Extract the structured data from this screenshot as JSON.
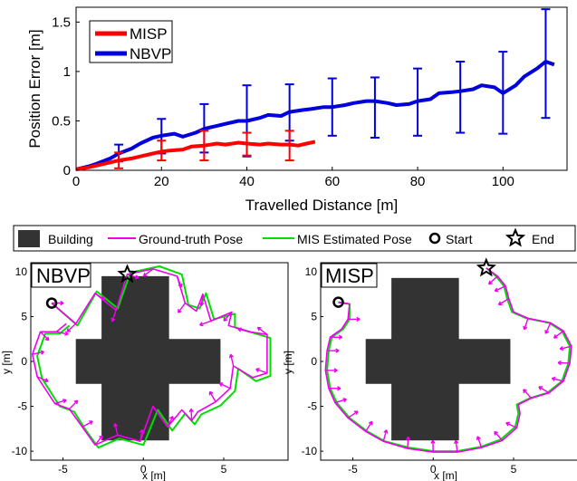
{
  "chart_data": [
    {
      "type": "line",
      "xlabel": "Travelled Distance [m]",
      "ylabel": "Position Error [m]",
      "xlim": [
        0,
        115
      ],
      "ylim": [
        0,
        1.65
      ],
      "xticks": [
        0,
        20,
        40,
        60,
        80,
        100
      ],
      "yticks": [
        0,
        0.5,
        1,
        1.5
      ],
      "ytick_labels": [
        "0",
        "0.5",
        "1",
        "1.5"
      ],
      "legend_position": "top-left",
      "series": [
        {
          "name": "MISP",
          "color": "#ff0000",
          "x": [
            0,
            3,
            5,
            8,
            10,
            13,
            15,
            18,
            20,
            22,
            25,
            27,
            30,
            33,
            35,
            38,
            40,
            43,
            45,
            48,
            50,
            52,
            54,
            56
          ],
          "y": [
            0.01,
            0.03,
            0.05,
            0.08,
            0.1,
            0.12,
            0.14,
            0.17,
            0.19,
            0.2,
            0.21,
            0.24,
            0.25,
            0.27,
            0.26,
            0.28,
            0.27,
            0.26,
            0.27,
            0.26,
            0.26,
            0.25,
            0.27,
            0.29
          ],
          "errorbars": [
            {
              "x": 10,
              "y": 0.1,
              "low": 0.02,
              "high": 0.18
            },
            {
              "x": 20,
              "y": 0.19,
              "low": 0.1,
              "high": 0.3
            },
            {
              "x": 30,
              "y": 0.25,
              "low": 0.1,
              "high": 0.4
            },
            {
              "x": 40,
              "y": 0.27,
              "low": 0.15,
              "high": 0.38
            },
            {
              "x": 50,
              "y": 0.26,
              "low": 0.1,
              "high": 0.4
            }
          ]
        },
        {
          "name": "NBVP",
          "color": "#0000dd",
          "x": [
            0,
            3,
            5,
            8,
            10,
            13,
            15,
            18,
            20,
            23,
            25,
            28,
            30,
            33,
            35,
            38,
            40,
            43,
            45,
            48,
            50,
            53,
            55,
            58,
            60,
            63,
            65,
            68,
            70,
            73,
            75,
            78,
            80,
            83,
            85,
            88,
            90,
            93,
            95,
            98,
            100,
            103,
            105,
            108,
            110,
            112
          ],
          "y": [
            0.01,
            0.04,
            0.07,
            0.12,
            0.17,
            0.22,
            0.27,
            0.33,
            0.35,
            0.37,
            0.34,
            0.38,
            0.42,
            0.45,
            0.47,
            0.5,
            0.5,
            0.53,
            0.56,
            0.55,
            0.59,
            0.61,
            0.62,
            0.64,
            0.64,
            0.66,
            0.68,
            0.7,
            0.7,
            0.68,
            0.66,
            0.67,
            0.7,
            0.72,
            0.78,
            0.79,
            0.8,
            0.82,
            0.86,
            0.84,
            0.78,
            0.86,
            0.95,
            1.03,
            1.1,
            1.07
          ],
          "errorbars": [
            {
              "x": 10,
              "y": 0.17,
              "low": 0.09,
              "high": 0.26
            },
            {
              "x": 20,
              "y": 0.35,
              "low": 0.17,
              "high": 0.52
            },
            {
              "x": 30,
              "y": 0.42,
              "low": 0.18,
              "high": 0.67
            },
            {
              "x": 40,
              "y": 0.5,
              "low": 0.14,
              "high": 0.86
            },
            {
              "x": 50,
              "y": 0.59,
              "low": 0.3,
              "high": 0.87
            },
            {
              "x": 60,
              "y": 0.64,
              "low": 0.35,
              "high": 0.93
            },
            {
              "x": 70,
              "y": 0.7,
              "low": 0.33,
              "high": 0.94
            },
            {
              "x": 80,
              "y": 0.7,
              "low": 0.35,
              "high": 1.03
            },
            {
              "x": 90,
              "y": 0.8,
              "low": 0.38,
              "high": 1.1
            },
            {
              "x": 100,
              "y": 0.78,
              "low": 0.37,
              "high": 1.2
            },
            {
              "x": 110,
              "y": 1.1,
              "low": 0.53,
              "high": 1.63
            }
          ]
        }
      ]
    },
    {
      "type": "scatter",
      "title": "NBVP",
      "xlabel": "x [m]",
      "ylabel": "y [m]",
      "xlim": [
        -7,
        9
      ],
      "ylim": [
        -11,
        11
      ],
      "xticks": [
        -5,
        0,
        5
      ],
      "yticks": [
        10,
        5,
        0,
        -5,
        -10
      ],
      "start": [
        -5.7,
        6.5
      ],
      "end": [
        -1,
        9.7
      ],
      "building": [
        {
          "x0": -2.6,
          "x1": 1.6,
          "y0": -8.8,
          "y1": 9.5
        },
        {
          "x0": -4.2,
          "x1": 4.8,
          "y0": -2.5,
          "y1": 2.5
        }
      ],
      "ground_truth_path": [
        [
          -5.7,
          6.5
        ],
        [
          -4.2,
          4.2
        ],
        [
          -3,
          7.6
        ],
        [
          -1.7,
          5.7
        ],
        [
          -1,
          9.7
        ],
        [
          0.6,
          10.3
        ],
        [
          2.1,
          9.5
        ],
        [
          2.6,
          6.5
        ],
        [
          3.3,
          5.6
        ],
        [
          3.7,
          7.5
        ],
        [
          4.2,
          4.5
        ],
        [
          5.5,
          5.5
        ],
        [
          5.3,
          4
        ],
        [
          6.6,
          3.3
        ],
        [
          7.7,
          3
        ],
        [
          7.7,
          -1.3
        ],
        [
          6.8,
          -1.8
        ],
        [
          5.6,
          -0.5
        ],
        [
          5.4,
          -3
        ],
        [
          4.5,
          -4.5
        ],
        [
          3.4,
          -5.6
        ],
        [
          3,
          -6.6
        ],
        [
          2.4,
          -5.4
        ],
        [
          1.5,
          -7.3
        ],
        [
          0.6,
          -5
        ],
        [
          -0.2,
          -8.9
        ],
        [
          -1.6,
          -8.2
        ],
        [
          -3,
          -9.3
        ],
        [
          -3.8,
          -7.3
        ],
        [
          -4.6,
          -5.3
        ],
        [
          -5.5,
          -4.7
        ],
        [
          -6.6,
          -1.7
        ],
        [
          -6.9,
          0.8
        ],
        [
          -6.4,
          3.3
        ],
        [
          -5.4,
          3.3
        ],
        [
          -4.8,
          4.2
        ]
      ],
      "estimated_path": [
        [
          -5.7,
          6.5
        ],
        [
          -4.1,
          4
        ],
        [
          -2.9,
          7.8
        ],
        [
          -1.6,
          5.9
        ],
        [
          -0.8,
          9.9
        ],
        [
          1,
          10.6
        ],
        [
          2.4,
          9.7
        ],
        [
          2.8,
          6.3
        ],
        [
          3.5,
          5.9
        ],
        [
          3.9,
          7.6
        ],
        [
          4.4,
          4.7
        ],
        [
          5.7,
          5.3
        ],
        [
          5.7,
          3.8
        ],
        [
          7,
          3.1
        ],
        [
          7.9,
          2.6
        ],
        [
          7.9,
          -1.6
        ],
        [
          7,
          -2.2
        ],
        [
          5.9,
          -0.8
        ],
        [
          5.7,
          -3.3
        ],
        [
          4.8,
          -4.9
        ],
        [
          3.6,
          -5.9
        ],
        [
          3.2,
          -7
        ],
        [
          2.6,
          -5.8
        ],
        [
          1.8,
          -7.7
        ],
        [
          0.9,
          -5.4
        ],
        [
          0,
          -9.3
        ],
        [
          -1.5,
          -8.6
        ],
        [
          -2.8,
          -9.6
        ],
        [
          -3.6,
          -7.6
        ],
        [
          -4.3,
          -5.6
        ],
        [
          -5.2,
          -5
        ],
        [
          -6.3,
          -1.9
        ],
        [
          -6.6,
          0.6
        ],
        [
          -6.1,
          3.1
        ],
        [
          -5.2,
          3.1
        ],
        [
          -4.6,
          4
        ]
      ],
      "arrows": [
        [
          -5.7,
          6.5,
          0
        ],
        [
          -4.2,
          4.2,
          -2.4
        ],
        [
          -3,
          7.6,
          -0.6
        ],
        [
          -1.7,
          5.7,
          -1.9
        ],
        [
          -1,
          9.7,
          -0.3
        ],
        [
          0.6,
          10.3,
          -2.5
        ],
        [
          2.1,
          9.5,
          -1.2
        ],
        [
          2.6,
          6.5,
          -2.2
        ],
        [
          3.7,
          7.5,
          -1.7
        ],
        [
          4.2,
          4.5,
          -2.8
        ],
        [
          5.5,
          5.5,
          -2.3
        ],
        [
          6.6,
          3.3,
          2.9
        ],
        [
          7.7,
          3,
          2.5
        ],
        [
          7.7,
          -1.3,
          2.8
        ],
        [
          5.6,
          -0.5,
          1.8
        ],
        [
          5.4,
          -3,
          2.7
        ],
        [
          4.5,
          -4.5,
          2.1
        ],
        [
          3,
          -6.6,
          1.6
        ],
        [
          1.5,
          -7.3,
          1.1
        ],
        [
          -0.2,
          -8.9,
          1.4
        ],
        [
          -1.6,
          -8.2,
          1.8
        ],
        [
          -3,
          -9.3,
          0.9
        ],
        [
          -3.8,
          -7.3,
          0.5
        ],
        [
          -4.6,
          -5.3,
          0.8
        ],
        [
          -5.5,
          -4.7,
          0.3
        ],
        [
          -6.6,
          -1.7,
          -0.4
        ],
        [
          -6.9,
          0.8,
          0.2
        ],
        [
          -6.4,
          3.3,
          -0.8
        ],
        [
          -5.4,
          3.3,
          -0.2
        ]
      ]
    },
    {
      "type": "scatter",
      "title": "MISP",
      "xlabel": "x [m]",
      "ylabel": "y [m]",
      "xlim": [
        -7,
        9
      ],
      "ylim": [
        -11,
        11
      ],
      "xticks": [
        -5,
        0,
        5
      ],
      "yticks": [
        10,
        5,
        0,
        -5,
        -10
      ],
      "start": [
        -5.9,
        6.6
      ],
      "end": [
        3.3,
        10.4
      ],
      "building": [
        {
          "x0": -2.6,
          "x1": 1.6,
          "y0": -8.8,
          "y1": 9.3
        },
        {
          "x0": -4.2,
          "x1": 4.8,
          "y0": -2.5,
          "y1": 2.5
        }
      ],
      "ground_truth_path": [
        [
          -5.9,
          6.6
        ],
        [
          -5.2,
          6.4
        ],
        [
          -5.3,
          4.7
        ],
        [
          -5.7,
          3.6
        ],
        [
          -6.4,
          2.7
        ],
        [
          -6.6,
          1.2
        ],
        [
          -6.7,
          -1
        ],
        [
          -6.5,
          -3
        ],
        [
          -6.1,
          -4.6
        ],
        [
          -5.3,
          -6.3
        ],
        [
          -4.2,
          -7.8
        ],
        [
          -3.1,
          -8.9
        ],
        [
          -1.6,
          -9.7
        ],
        [
          0,
          -10.1
        ],
        [
          1.5,
          -10.1
        ],
        [
          3,
          -9.6
        ],
        [
          4.3,
          -8.8
        ],
        [
          5.2,
          -7.4
        ],
        [
          5.4,
          -5.8
        ],
        [
          5.3,
          -4.8
        ],
        [
          6.1,
          -4.1
        ],
        [
          7.2,
          -3.5
        ],
        [
          8.1,
          -2.2
        ],
        [
          8.5,
          -0.2
        ],
        [
          8.6,
          1.7
        ],
        [
          8.1,
          3.4
        ],
        [
          7.3,
          4.3
        ],
        [
          5.9,
          4.8
        ],
        [
          5,
          5.5
        ],
        [
          4.7,
          7
        ],
        [
          4.5,
          8.4
        ],
        [
          4,
          9.5
        ],
        [
          3.3,
          10.4
        ]
      ],
      "estimated_path": [
        [
          -5.9,
          6.6
        ],
        [
          -5.2,
          6.4
        ],
        [
          -5.2,
          4.7
        ],
        [
          -5.6,
          3.6
        ],
        [
          -6.3,
          2.7
        ],
        [
          -6.5,
          1.2
        ],
        [
          -6.6,
          -1
        ],
        [
          -6.4,
          -3
        ],
        [
          -6,
          -4.6
        ],
        [
          -5.2,
          -6.3
        ],
        [
          -4.1,
          -7.8
        ],
        [
          -3,
          -8.9
        ],
        [
          -1.5,
          -9.6
        ],
        [
          0,
          -10
        ],
        [
          1.5,
          -10
        ],
        [
          3,
          -9.5
        ],
        [
          4.2,
          -8.7
        ],
        [
          5.1,
          -7.3
        ],
        [
          5.3,
          -5.8
        ],
        [
          5.2,
          -4.8
        ],
        [
          6,
          -4.1
        ],
        [
          7.1,
          -3.5
        ],
        [
          8,
          -2.2
        ],
        [
          8.4,
          -0.2
        ],
        [
          8.5,
          1.7
        ],
        [
          8,
          3.4
        ],
        [
          7.2,
          4.3
        ],
        [
          5.8,
          4.8
        ],
        [
          4.9,
          5.5
        ],
        [
          4.6,
          7
        ],
        [
          4.4,
          8.4
        ],
        [
          3.9,
          9.5
        ],
        [
          3.3,
          10.4
        ]
      ],
      "arrows": [
        [
          -5.3,
          4.7,
          0
        ],
        [
          -6.4,
          2.7,
          0
        ],
        [
          -6.6,
          1.2,
          0
        ],
        [
          -6.7,
          -1,
          0
        ],
        [
          -6.5,
          -3,
          0
        ],
        [
          -6.1,
          -4.6,
          0.3
        ],
        [
          -5.3,
          -6.3,
          0.6
        ],
        [
          -4.2,
          -7.8,
          1
        ],
        [
          -3.1,
          -8.9,
          1.3
        ],
        [
          -1.6,
          -9.7,
          1.5
        ],
        [
          0,
          -10.1,
          1.6
        ],
        [
          1.5,
          -10.1,
          1.7
        ],
        [
          3,
          -9.6,
          1.9
        ],
        [
          4.3,
          -8.8,
          2.3
        ],
        [
          5.2,
          -7.4,
          2.7
        ],
        [
          6.1,
          -4.1,
          2.3
        ],
        [
          7.2,
          -3.5,
          2.6
        ],
        [
          8.1,
          -2.2,
          2.9
        ],
        [
          8.5,
          -0.2,
          3.1
        ],
        [
          8.6,
          1.7,
          -2.9
        ],
        [
          8.1,
          3.4,
          -2.5
        ],
        [
          7.3,
          4.3,
          -2
        ],
        [
          5.9,
          4.8,
          -1.9
        ],
        [
          4.7,
          7,
          -2.6
        ],
        [
          4.5,
          8.4,
          -2.7
        ],
        [
          4,
          9.5,
          -2.4
        ]
      ]
    }
  ],
  "legend_bottom": {
    "items": [
      {
        "label": "Building",
        "marker": "square",
        "color": "#333333"
      },
      {
        "label": "Ground-truth Pose",
        "marker": "line",
        "color": "#ee00ee"
      },
      {
        "label": "MIS Estimated Pose",
        "marker": "line",
        "color": "#00dd00"
      },
      {
        "label": "Start",
        "marker": "circle",
        "color": "#000000"
      },
      {
        "label": "End",
        "marker": "star",
        "color": "#000000"
      }
    ]
  }
}
